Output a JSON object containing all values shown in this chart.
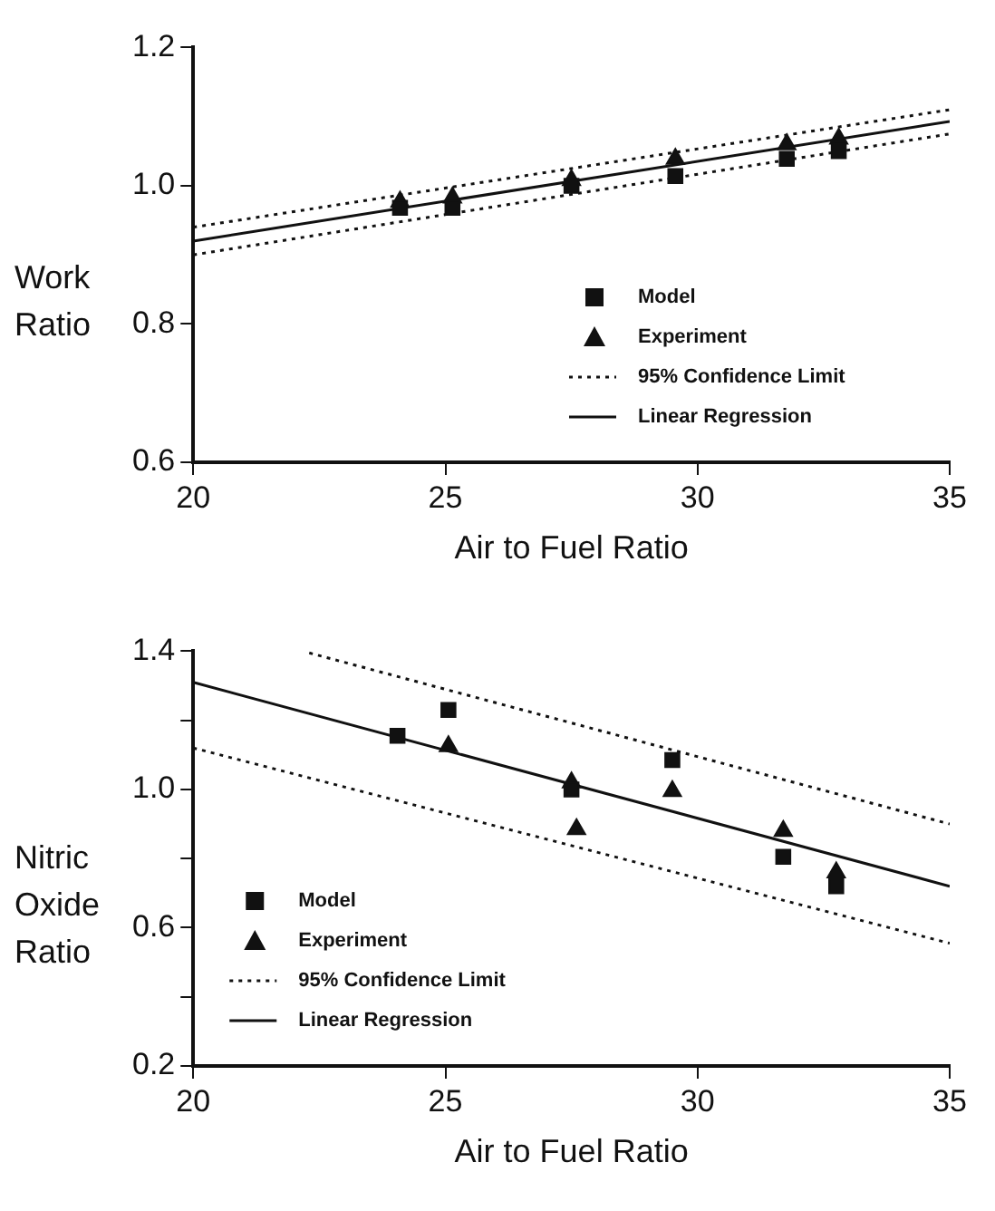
{
  "chart_data": [
    {
      "type": "scatter",
      "xlabel": "Air to Fuel Ratio",
      "ylabel": "Work Ratio",
      "xlim": [
        20,
        35
      ],
      "xticks": [
        20,
        25,
        30,
        35
      ],
      "ylim": [
        0.6,
        1.2
      ],
      "yticks": [
        0.6,
        0.8,
        {
          "value": 1,
          "label": "1.0"
        },
        1.2
      ],
      "legend": "bottom right",
      "series": [
        {
          "name": "Model",
          "type": "scatter",
          "marker": "square",
          "color": "#111111",
          "x": [
            24.1,
            25.14,
            27.5,
            29.56,
            31.77,
            32.8
          ],
          "values": [
            0.968,
            0.968,
            1.0,
            1.014,
            1.039,
            1.05
          ]
        },
        {
          "name": "Experiment",
          "type": "scatter",
          "marker": "triangle",
          "color": "#111111",
          "x": [
            24.1,
            25.14,
            27.5,
            29.56,
            31.77,
            32.8
          ],
          "values": [
            0.977,
            0.983,
            1.008,
            1.039,
            1.06,
            1.068
          ]
        },
        {
          "name": "95% Confidence Limit",
          "type": "line",
          "line_style": "dotted",
          "color": "#111111",
          "x": [
            20,
            35
          ],
          "values": [
            0.94,
            1.11
          ]
        },
        {
          "type": "line",
          "line_style": "dotted",
          "color": "#111111",
          "x": [
            20,
            35
          ],
          "values": [
            0.9,
            1.075
          ]
        },
        {
          "name": "Linear Regression",
          "type": "line",
          "line_style": "solid",
          "color": "#111111",
          "x": [
            20,
            35
          ],
          "values": [
            0.92,
            1.093
          ]
        }
      ]
    },
    {
      "type": "scatter",
      "xlabel": "Air to Fuel Ratio",
      "ylabel": "Nitric Oxide Ratio",
      "xlim": [
        20,
        35
      ],
      "xticks": [
        20,
        25,
        30,
        35
      ],
      "ylim": [
        0.2,
        1.4
      ],
      "yticks": [
        0.2,
        {
          "value": 0.4,
          "label": null
        },
        0.6,
        {
          "value": 0.8,
          "label": null
        },
        {
          "value": 1,
          "label": "1.0"
        },
        {
          "value": 1.2,
          "label": null
        },
        1.4
      ],
      "legend": "bottom left",
      "series": [
        {
          "name": "Model",
          "type": "scatter",
          "marker": "square",
          "color": "#111111",
          "x": [
            24.05,
            25.06,
            27.5,
            29.5,
            31.7,
            32.75
          ],
          "values": [
            1.155,
            1.23,
            1.0,
            1.085,
            0.805,
            0.72
          ]
        },
        {
          "name": "Experiment",
          "type": "scatter",
          "marker": "triangle",
          "color": "#111111",
          "x": [
            25.06,
            27.5,
            27.6,
            29.5,
            31.7,
            32.75
          ],
          "values": [
            1.125,
            1.02,
            0.885,
            0.995,
            0.88,
            0.76
          ]
        },
        {
          "name": "95% Confidence Limit",
          "type": "line",
          "line_style": "dotted",
          "color": "#111111",
          "x": [
            22.3,
            35
          ],
          "values": [
            1.395,
            0.9
          ]
        },
        {
          "type": "line",
          "line_style": "dotted",
          "color": "#111111",
          "x": [
            20,
            35
          ],
          "values": [
            1.12,
            0.555
          ]
        },
        {
          "name": "Linear Regression",
          "type": "line",
          "line_style": "solid",
          "color": "#111111",
          "x": [
            20,
            35
          ],
          "values": [
            1.31,
            0.72
          ]
        }
      ]
    }
  ]
}
